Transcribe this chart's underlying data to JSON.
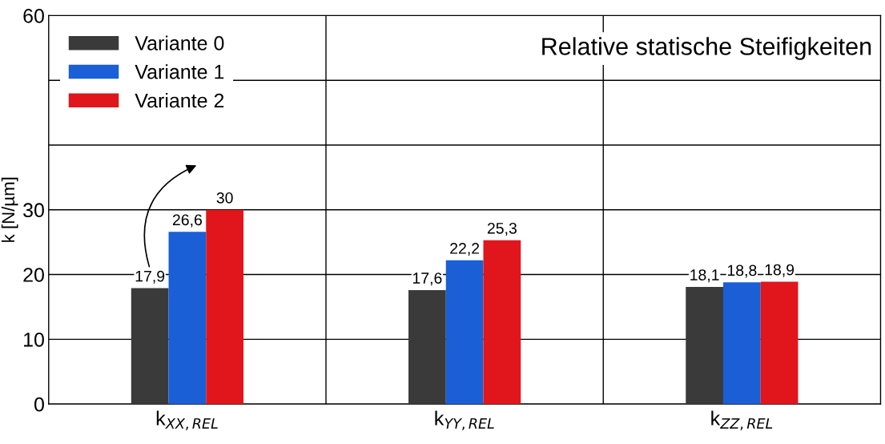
{
  "chart_data": {
    "type": "bar",
    "title": "Relative statische Steifigkeiten",
    "ylabel": "k [N/µm]",
    "categories": [
      "k$_{XX,REL}$",
      "k$_{YY,REL}$",
      "k$_{ZZ,REL}$"
    ],
    "series": [
      {
        "name": "Variante 0",
        "color": "#3a3a3a",
        "values": [
          17.9,
          17.6,
          18.1
        ],
        "value_labels": [
          "17,9",
          "17,6",
          "18,1"
        ]
      },
      {
        "name": "Variante 1",
        "color": "#1a5fd6",
        "values": [
          26.6,
          22.2,
          18.8
        ],
        "value_labels": [
          "26,6",
          "22,2",
          "18,8"
        ]
      },
      {
        "name": "Variante 2",
        "color": "#e0161c",
        "values": [
          30,
          25.3,
          18.9
        ],
        "value_labels": [
          "30",
          "25,3",
          "18,9"
        ]
      }
    ],
    "ylim": [
      0,
      60
    ],
    "yticks": [
      0,
      10,
      20,
      30,
      {
        "value": 40,
        "label": null
      },
      {
        "value": 50,
        "label": null
      },
      60
    ],
    "grid": true,
    "legend": "top left"
  }
}
